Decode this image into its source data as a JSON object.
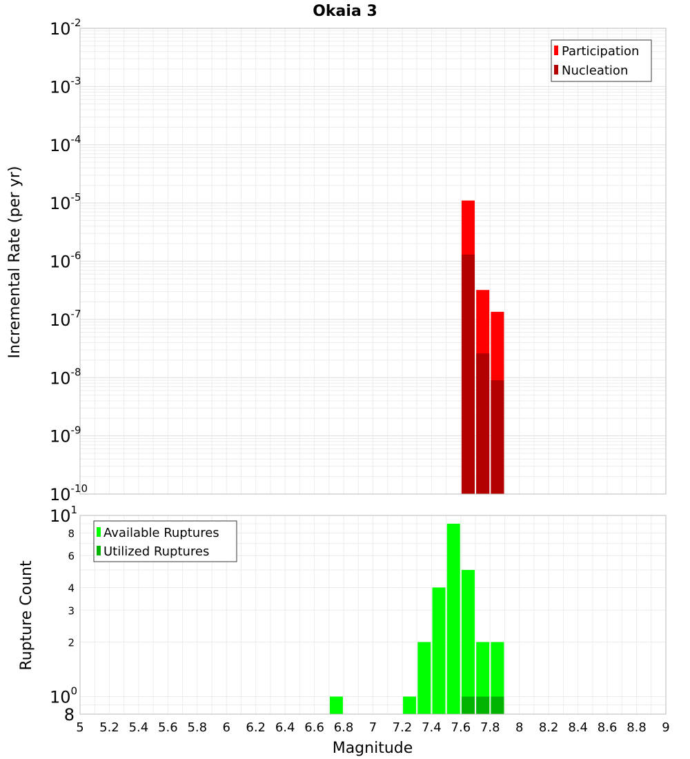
{
  "chart_data": [
    {
      "type": "bar",
      "title": "Okaia 3",
      "xlabel": "",
      "ylabel": "Incremental Rate (per yr)",
      "yscale": "log",
      "xlim": [
        5,
        9
      ],
      "ylim": [
        1e-10,
        0.01
      ],
      "ytick_labels": [
        {
          "value": 0.01,
          "base": "10",
          "exp": "-2"
        },
        {
          "value": 0.001,
          "base": "10",
          "exp": "-3"
        },
        {
          "value": 0.0001,
          "base": "10",
          "exp": "-4"
        },
        {
          "value": 1e-05,
          "base": "10",
          "exp": "-5"
        },
        {
          "value": 1e-06,
          "base": "10",
          "exp": "-6"
        },
        {
          "value": 1e-07,
          "base": "10",
          "exp": "-7"
        },
        {
          "value": 1e-08,
          "base": "10",
          "exp": "-8"
        },
        {
          "value": 1e-09,
          "base": "10",
          "exp": "-9"
        },
        {
          "value": 1e-10,
          "base": "10",
          "exp": "-10"
        }
      ],
      "grid": true,
      "legend": {
        "position": "top-right",
        "entries": [
          "Participation",
          "Nucleation"
        ]
      },
      "series": [
        {
          "name": "Participation",
          "color": "#ff0000",
          "x": [
            7.65,
            7.75,
            7.85
          ],
          "values": [
            1.1e-05,
            3.2e-07,
            1.35e-07
          ]
        },
        {
          "name": "Nucleation",
          "color": "#b30000",
          "x": [
            7.65,
            7.75,
            7.85
          ],
          "values": [
            1.3e-06,
            2.6e-08,
            9e-09
          ]
        }
      ]
    },
    {
      "type": "bar",
      "title": "",
      "xlabel": "Magnitude",
      "ylabel": "Rupture Count",
      "yscale": "log",
      "xlim": [
        5,
        9
      ],
      "ylim": [
        0.8,
        10
      ],
      "ytick_labels": [
        {
          "value": 10,
          "base": "10",
          "exp": "1"
        },
        {
          "value": 8,
          "base": "8",
          "exp": ""
        },
        {
          "value": 6,
          "base": "6",
          "exp": ""
        },
        {
          "value": 4,
          "base": "4",
          "exp": ""
        },
        {
          "value": 3,
          "base": "3",
          "exp": ""
        },
        {
          "value": 2,
          "base": "2",
          "exp": ""
        },
        {
          "value": 1,
          "base": "10",
          "exp": "0"
        },
        {
          "value": 0.8,
          "base": "8",
          "exp": ""
        }
      ],
      "xtick_labels": [
        "5",
        "5.2",
        "5.4",
        "5.6",
        "5.8",
        "6",
        "6.2",
        "6.4",
        "6.6",
        "6.8",
        "7",
        "7.2",
        "7.4",
        "7.6",
        "7.8",
        "8",
        "8.2",
        "8.4",
        "8.6",
        "8.8",
        "9"
      ],
      "grid": true,
      "legend": {
        "position": "top-left",
        "entries": [
          "Available Ruptures",
          "Utilized Ruptures"
        ]
      },
      "series": [
        {
          "name": "Available Ruptures",
          "color": "#00ff00",
          "x": [
            6.75,
            7.25,
            7.35,
            7.45,
            7.55,
            7.65,
            7.75,
            7.85
          ],
          "values": [
            1,
            1,
            2,
            4,
            9,
            5,
            2,
            2
          ]
        },
        {
          "name": "Utilized Ruptures",
          "color": "#00b300",
          "x": [
            7.65,
            7.75,
            7.85
          ],
          "values": [
            1,
            1,
            1
          ]
        }
      ]
    }
  ]
}
